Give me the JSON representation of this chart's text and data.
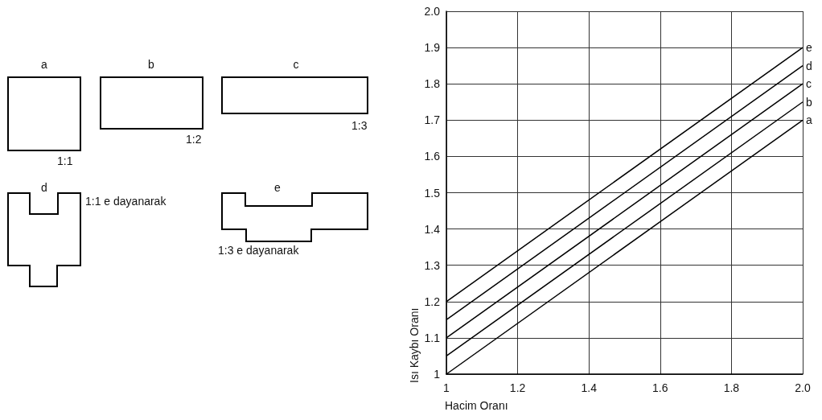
{
  "chart_data": {
    "type": "line",
    "xlabel": "Hacim Oranı",
    "ylabel": "Isı Kaybı Oranı",
    "x": [
      1,
      2
    ],
    "series": [
      {
        "name": "e",
        "color": "#000000",
        "values": [
          1.2,
          1.9
        ]
      },
      {
        "name": "d",
        "color": "#000000",
        "values": [
          1.15,
          1.85
        ]
      },
      {
        "name": "c",
        "color": "#000000",
        "values": [
          1.1,
          1.8
        ]
      },
      {
        "name": "b",
        "color": "#000000",
        "values": [
          1.05,
          1.75
        ]
      },
      {
        "name": "a",
        "color": "#000000",
        "values": [
          1.0,
          1.7
        ]
      }
    ],
    "xlim": [
      1,
      2
    ],
    "xticks": [
      1,
      1.2,
      1.4,
      1.6,
      1.8,
      {
        "value": 2,
        "label": "2.0"
      }
    ],
    "ylim": [
      1,
      2
    ],
    "yticks": [
      1,
      1.1,
      1.2,
      1.3,
      1.4,
      1.5,
      1.6,
      1.7,
      1.8,
      1.9,
      {
        "value": 2,
        "label": "2.0"
      }
    ],
    "grid": true,
    "legend": false,
    "marker": "none",
    "line_style": "solid",
    "annotations": [
      "a",
      "b",
      "c",
      "1:1",
      "1:2",
      "1:3",
      "d",
      "1:1 e dayanarak",
      "e",
      "1:3 e dayanarak"
    ]
  }
}
